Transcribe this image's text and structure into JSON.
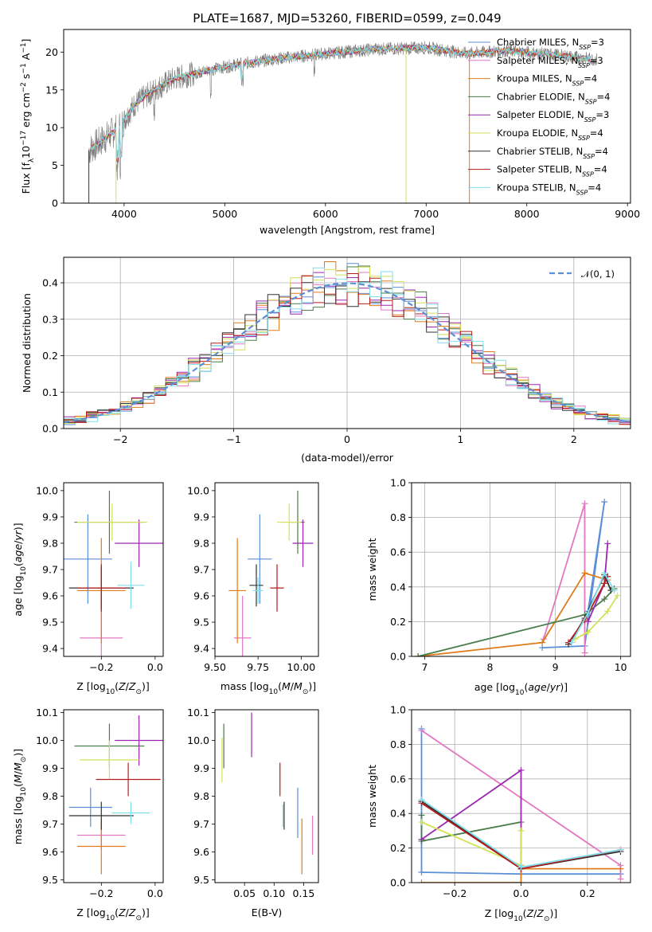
{
  "figure_title": "PLATE=1687, MJD=53260, FIBERID=0599, z=0.049",
  "colors": {
    "chabrier_miles": "#5b8fd8",
    "salpeter_miles": "#e377c2",
    "kroupa_miles": "#e07b1a",
    "chabrier_elodie": "#4a7d4a",
    "salpeter_elodie": "#9b27af",
    "kroupa_elodie": "#d4e157",
    "chabrier_stelib": "#333333",
    "salpeter_stelib": "#b71c1c",
    "kroupa_stelib": "#80deea",
    "grid": "#b0b0b0",
    "normal_curve": "#5b8fd8"
  },
  "chart_data": [
    {
      "id": "spectrum",
      "type": "line",
      "xlabel": "wavelength [Angstrom, rest frame]",
      "ylabel": "Flux [f",
      "ylabel_parts": [
        "Flux [f",
        "λ",
        "10",
        "−17",
        " erg cm",
        "−2",
        " s",
        "−1",
        " A",
        "−1",
        "]"
      ],
      "xlim": [
        3400,
        9030
      ],
      "ylim": [
        0,
        23
      ],
      "xticks": [
        "4000",
        "5000",
        "6000",
        "7000",
        "8000",
        "9000"
      ],
      "yticks": [
        "0",
        "5",
        "10",
        "15",
        "20"
      ],
      "grid": false,
      "legend_position": "top-right",
      "legend": [
        {
          "base": "Chabrier MILES, N",
          "sub": "SSP",
          "tail": "=3",
          "color_key": "chabrier_miles"
        },
        {
          "base": "Salpeter MILES, N",
          "sub": "SSP",
          "tail": "=3",
          "color_key": "salpeter_miles"
        },
        {
          "base": "Kroupa MILES, N",
          "sub": "SSP",
          "tail": "=4",
          "color_key": "kroupa_miles"
        },
        {
          "base": "Chabrier ELODIE, N",
          "sub": "SSP",
          "tail": "=4",
          "color_key": "chabrier_elodie"
        },
        {
          "base": "Salpeter ELODIE, N",
          "sub": "SSP",
          "tail": "=3",
          "color_key": "salpeter_elodie"
        },
        {
          "base": "Kroupa ELODIE, N",
          "sub": "SSP",
          "tail": "=4",
          "color_key": "kroupa_elodie"
        },
        {
          "base": "Chabrier STELIB, N",
          "sub": "SSP",
          "tail": "=4",
          "color_key": "chabrier_stelib"
        },
        {
          "base": "Salpeter STELIB, N",
          "sub": "SSP",
          "tail": "=4",
          "color_key": "salpeter_stelib"
        },
        {
          "base": "Kroupa STELIB, N",
          "sub": "SSP",
          "tail": "=4",
          "color_key": "kroupa_stelib"
        }
      ],
      "continuum": [
        [
          3650,
          7
        ],
        [
          3800,
          8.5
        ],
        [
          3950,
          10
        ],
        [
          4100,
          13
        ],
        [
          4300,
          15
        ],
        [
          4500,
          16.5
        ],
        [
          4800,
          17.5
        ],
        [
          5100,
          18.3
        ],
        [
          5500,
          19.1
        ],
        [
          6000,
          19.8
        ],
        [
          6500,
          20.4
        ],
        [
          7000,
          20.6
        ],
        [
          7400,
          19.8
        ],
        [
          7800,
          20.2
        ],
        [
          8300,
          19.6
        ],
        [
          8700,
          19.0
        ]
      ],
      "spectrum_range": [
        3650,
        8700
      ]
    },
    {
      "id": "residuals",
      "type": "step",
      "xlabel": "(data-model)/error",
      "ylabel": "Normed distribution",
      "xlim": [
        -2.5,
        2.5
      ],
      "ylim": [
        0,
        0.47
      ],
      "xticks": [
        "−2",
        "−1",
        "0",
        "1",
        "2"
      ],
      "yticks": [
        "0.0",
        "0.1",
        "0.2",
        "0.3",
        "0.4"
      ],
      "grid": true,
      "legend_position": "top-right",
      "legend_label": "𝒩(0, 1)",
      "bin_width": 0.1
    },
    {
      "id": "age_vs_Z",
      "type": "errorbar",
      "xlabel": "Z [log",
      "ylabel": "age  [log",
      "xlim": [
        -0.34,
        0.03
      ],
      "ylim": [
        9.37,
        10.03
      ],
      "xticks": [
        "−0.2",
        "0.0"
      ],
      "yticks": [
        "9.4",
        "9.5",
        "9.6",
        "9.7",
        "9.8",
        "9.9",
        "10.0"
      ],
      "points": [
        {
          "color_key": "chabrier_miles",
          "x": -0.25,
          "xerr": 0.09,
          "y": 9.74,
          "yerr": 0.17
        },
        {
          "color_key": "salpeter_miles",
          "x": -0.2,
          "xerr": 0.08,
          "y": 9.44,
          "yerr": 0.16
        },
        {
          "color_key": "kroupa_miles",
          "x": -0.2,
          "xerr": 0.09,
          "y": 9.62,
          "yerr": 0.2
        },
        {
          "color_key": "chabrier_elodie",
          "x": -0.17,
          "xerr": 0.13,
          "y": 9.88,
          "yerr": 0.12
        },
        {
          "color_key": "salpeter_elodie",
          "x": -0.06,
          "xerr": 0.09,
          "y": 9.8,
          "yerr": 0.09
        },
        {
          "color_key": "kroupa_elodie",
          "x": -0.16,
          "xerr": 0.13,
          "y": 9.88,
          "yerr": 0.07
        },
        {
          "color_key": "chabrier_stelib",
          "x": -0.2,
          "xerr": 0.12,
          "y": 9.63,
          "yerr": 0.08
        },
        {
          "color_key": "salpeter_stelib",
          "x": -0.2,
          "xerr": 0.09,
          "y": 9.63,
          "yerr": 0.09
        },
        {
          "color_key": "kroupa_stelib",
          "x": -0.09,
          "xerr": 0.05,
          "y": 9.64,
          "yerr": 0.09
        }
      ]
    },
    {
      "id": "age_vs_mass",
      "type": "errorbar",
      "xlabel": "mass [log",
      "ylabel": "",
      "xlim": [
        9.5,
        10.1
      ],
      "ylim": [
        9.37,
        10.03
      ],
      "xticks": [
        "9.50",
        "9.75",
        "10.00"
      ],
      "yticks": [
        "9.4",
        "9.5",
        "9.6",
        "9.7",
        "9.8",
        "9.9",
        "10.0"
      ],
      "points": [
        {
          "color_key": "chabrier_miles",
          "x": 9.76,
          "xerr": 0.07,
          "y": 9.74,
          "yerr": 0.17
        },
        {
          "color_key": "salpeter_miles",
          "x": 9.66,
          "xerr": 0.05,
          "y": 9.44,
          "yerr": 0.16
        },
        {
          "color_key": "kroupa_miles",
          "x": 9.63,
          "xerr": 0.05,
          "y": 9.62,
          "yerr": 0.2
        },
        {
          "color_key": "chabrier_elodie",
          "x": 9.98,
          "xerr": 0.04,
          "y": 9.88,
          "yerr": 0.12
        },
        {
          "color_key": "salpeter_elodie",
          "x": 10.01,
          "xerr": 0.06,
          "y": 9.8,
          "yerr": 0.09
        },
        {
          "color_key": "kroupa_elodie",
          "x": 9.93,
          "xerr": 0.07,
          "y": 9.88,
          "yerr": 0.07
        },
        {
          "color_key": "chabrier_stelib",
          "x": 9.74,
          "xerr": 0.04,
          "y": 9.64,
          "yerr": 0.08
        },
        {
          "color_key": "salpeter_stelib",
          "x": 9.86,
          "xerr": 0.04,
          "y": 9.63,
          "yerr": 0.09
        },
        {
          "color_key": "kroupa_stelib",
          "x": 9.75,
          "xerr": 0.03,
          "y": 9.62,
          "yerr": 0.05
        }
      ]
    },
    {
      "id": "massweight_vs_age",
      "type": "line",
      "xlabel": "age  [log",
      "ylabel": "mass weight",
      "xlim": [
        6.8,
        10.15
      ],
      "ylim": [
        0,
        1.0
      ],
      "xticks": [
        "7",
        "8",
        "9",
        "10"
      ],
      "yticks": [
        "0.0",
        "0.2",
        "0.4",
        "0.6",
        "0.8",
        "1.0"
      ],
      "grid": true,
      "series": [
        {
          "color_key": "chabrier_miles",
          "x": [
            8.8,
            9.45,
            9.75,
            9.5
          ],
          "y": [
            0.05,
            0.06,
            0.89,
            0.26
          ]
        },
        {
          "color_key": "salpeter_miles",
          "x": [
            8.82,
            9.45,
            9.45
          ],
          "y": [
            0.1,
            0.88,
            0.02
          ]
        },
        {
          "color_key": "kroupa_miles",
          "x": [
            6.9,
            8.8,
            9.45,
            9.8
          ],
          "y": [
            0.0,
            0.08,
            0.48,
            0.44
          ]
        },
        {
          "color_key": "chabrier_elodie",
          "x": [
            6.9,
            9.45,
            9.75,
            9.9
          ],
          "y": [
            0.0,
            0.24,
            0.33,
            0.39
          ]
        },
        {
          "color_key": "salpeter_elodie",
          "x": [
            9.5,
            9.75,
            9.8
          ],
          "y": [
            0.2,
            0.42,
            0.65
          ]
        },
        {
          "color_key": "kroupa_elodie",
          "x": [
            9.3,
            9.5,
            9.8,
            9.95
          ],
          "y": [
            0.1,
            0.14,
            0.26,
            0.35
          ]
        },
        {
          "color_key": "chabrier_stelib",
          "x": [
            9.2,
            9.45,
            9.75,
            9.85
          ],
          "y": [
            0.07,
            0.22,
            0.47,
            0.38
          ]
        },
        {
          "color_key": "salpeter_stelib",
          "x": [
            9.2,
            9.45,
            9.75,
            9.8
          ],
          "y": [
            0.08,
            0.21,
            0.42,
            0.46
          ]
        },
        {
          "color_key": "kroupa_stelib",
          "x": [
            9.25,
            9.5,
            9.75,
            9.9
          ],
          "y": [
            0.08,
            0.25,
            0.48,
            0.38
          ]
        }
      ]
    },
    {
      "id": "mass_vs_Z",
      "type": "errorbar",
      "xlabel": "Z [log",
      "ylabel": "mass [log",
      "xlim": [
        -0.34,
        0.03
      ],
      "ylim": [
        9.49,
        10.11
      ],
      "xticks": [
        "−0.2",
        "0.0"
      ],
      "yticks": [
        "9.5",
        "9.6",
        "9.7",
        "9.8",
        "9.9",
        "10.0",
        "10.1"
      ],
      "points": [
        {
          "color_key": "chabrier_miles",
          "x": -0.24,
          "xerr": 0.08,
          "y": 9.76,
          "yerr": 0.07
        },
        {
          "color_key": "salpeter_miles",
          "x": -0.2,
          "xerr": 0.09,
          "y": 9.66,
          "yerr": 0.05
        },
        {
          "color_key": "kroupa_miles",
          "x": -0.2,
          "xerr": 0.09,
          "y": 9.62,
          "yerr": 0.1
        },
        {
          "color_key": "chabrier_elodie",
          "x": -0.17,
          "xerr": 0.13,
          "y": 9.98,
          "yerr": 0.08
        },
        {
          "color_key": "salpeter_elodie",
          "x": -0.06,
          "xerr": 0.09,
          "y": 10.0,
          "yerr": 0.09
        },
        {
          "color_key": "kroupa_elodie",
          "x": -0.17,
          "xerr": 0.11,
          "y": 9.93,
          "yerr": 0.07
        },
        {
          "color_key": "chabrier_stelib",
          "x": -0.2,
          "xerr": 0.12,
          "y": 9.73,
          "yerr": 0.05
        },
        {
          "color_key": "salpeter_stelib",
          "x": -0.1,
          "xerr": 0.12,
          "y": 9.86,
          "yerr": 0.06
        },
        {
          "color_key": "kroupa_stelib",
          "x": -0.09,
          "xerr": 0.07,
          "y": 9.74,
          "yerr": 0.04
        }
      ]
    },
    {
      "id": "mass_vs_ebv",
      "type": "errorbar",
      "xlabel": "E(B-V)",
      "ylabel": "",
      "xlim": [
        0.0,
        0.175
      ],
      "ylim": [
        9.49,
        10.11
      ],
      "xticks": [
        "0.05",
        "0.10",
        "0.15"
      ],
      "yticks": [
        "9.5",
        "9.6",
        "9.7",
        "9.8",
        "9.9",
        "10.0",
        "10.1"
      ],
      "points": [
        {
          "color_key": "chabrier_miles",
          "x": 0.14,
          "xerr": 0.0,
          "y": 9.74,
          "yerr": 0.09
        },
        {
          "color_key": "salpeter_miles",
          "x": 0.165,
          "xerr": 0.0,
          "y": 9.66,
          "yerr": 0.07
        },
        {
          "color_key": "kroupa_miles",
          "x": 0.147,
          "xerr": 0.0,
          "y": 9.62,
          "yerr": 0.1
        },
        {
          "color_key": "chabrier_elodie",
          "x": 0.015,
          "xerr": 0.0,
          "y": 9.98,
          "yerr": 0.08
        },
        {
          "color_key": "salpeter_elodie",
          "x": 0.062,
          "xerr": 0.0,
          "y": 10.02,
          "yerr": 0.08
        },
        {
          "color_key": "kroupa_elodie",
          "x": 0.012,
          "xerr": 0.0,
          "y": 9.93,
          "yerr": 0.08
        },
        {
          "color_key": "chabrier_stelib",
          "x": 0.117,
          "xerr": 0.0,
          "y": 9.73,
          "yerr": 0.05
        },
        {
          "color_key": "salpeter_stelib",
          "x": 0.11,
          "xerr": 0.0,
          "y": 9.86,
          "yerr": 0.06
        },
        {
          "color_key": "kroupa_stelib",
          "x": 0.115,
          "xerr": 0.0,
          "y": 9.73,
          "yerr": 0.04
        }
      ]
    },
    {
      "id": "massweight_vs_Z",
      "type": "line",
      "xlabel": "Z [log",
      "ylabel": "mass weight",
      "xlim": [
        -0.33,
        0.33
      ],
      "ylim": [
        0,
        1.0
      ],
      "xticks": [
        "−0.2",
        "0.0",
        "0.2"
      ],
      "yticks": [
        "0.0",
        "0.2",
        "0.4",
        "0.6",
        "0.8",
        "1.0"
      ],
      "grid": true,
      "series": [
        {
          "color_key": "chabrier_miles",
          "x": [
            -0.3,
            -0.3,
            0.0,
            0.3
          ],
          "y": [
            0.89,
            0.06,
            0.05,
            0.05
          ]
        },
        {
          "color_key": "salpeter_miles",
          "x": [
            -0.3,
            0.3,
            0.3
          ],
          "y": [
            0.88,
            0.1,
            0.02
          ]
        },
        {
          "color_key": "kroupa_miles",
          "x": [
            -0.3,
            0.0,
            0.0,
            0.3
          ],
          "y": [
            0.0,
            0.0,
            0.08,
            0.08
          ]
        },
        {
          "color_key": "chabrier_elodie",
          "x": [
            -0.3,
            -0.3,
            0.0
          ],
          "y": [
            0.39,
            0.24,
            0.35
          ]
        },
        {
          "color_key": "salpeter_elodie",
          "x": [
            -0.3,
            0.0,
            0.0
          ],
          "y": [
            0.25,
            0.65,
            0.1
          ]
        },
        {
          "color_key": "kroupa_elodie",
          "x": [
            -0.3,
            0.0,
            0.0
          ],
          "y": [
            0.35,
            0.1,
            0.3
          ]
        },
        {
          "color_key": "chabrier_stelib",
          "x": [
            -0.3,
            0.0,
            0.3
          ],
          "y": [
            0.47,
            0.08,
            0.18
          ]
        },
        {
          "color_key": "salpeter_stelib",
          "x": [
            -0.3,
            0.0,
            0.3
          ],
          "y": [
            0.46,
            0.08,
            0.19
          ]
        },
        {
          "color_key": "kroupa_stelib",
          "x": [
            -0.3,
            0.0,
            0.3
          ],
          "y": [
            0.48,
            0.09,
            0.19
          ]
        }
      ]
    }
  ]
}
